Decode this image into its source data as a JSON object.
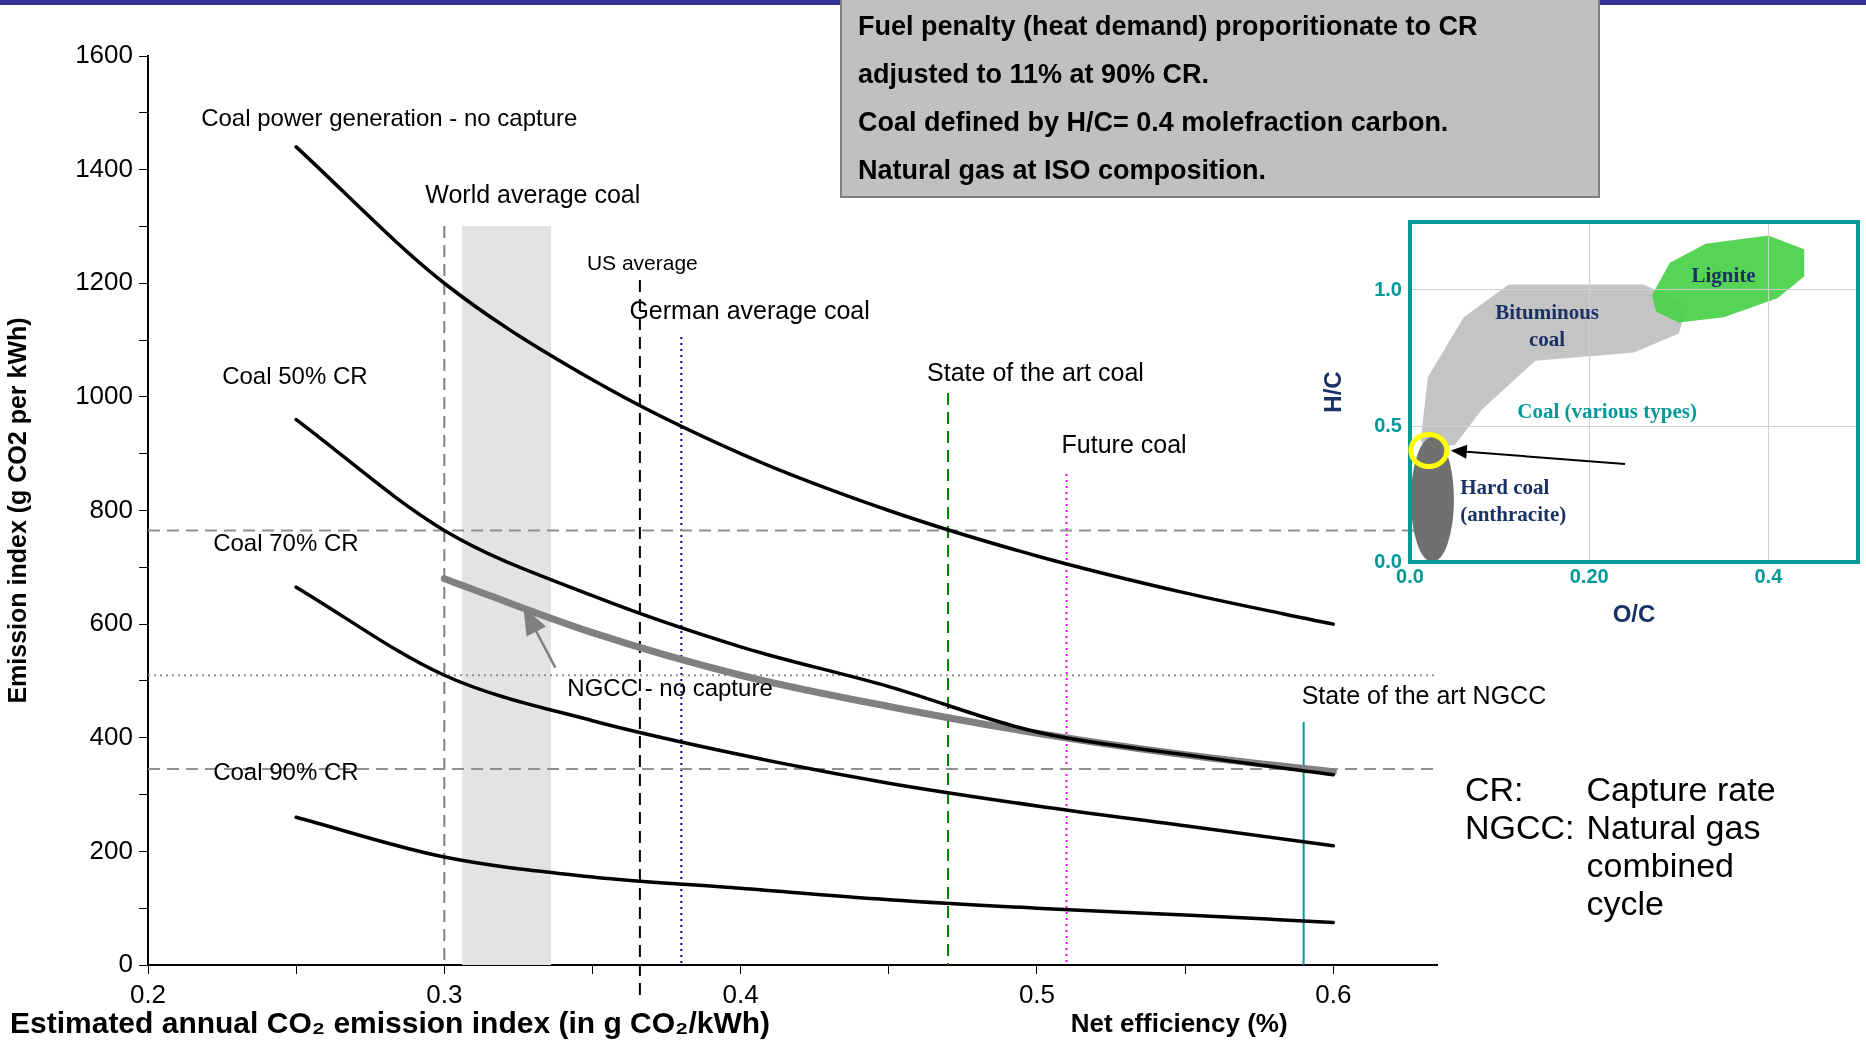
{
  "chart_data": [
    {
      "type": "line",
      "xlabel": "Net efficiency (%)",
      "ylabel": "Emission index (g CO2 per kWh)",
      "xlim": [
        0.2,
        0.635
      ],
      "ylim": [
        0,
        1600
      ],
      "xticks": [
        0.2,
        {
          "value": 0.25,
          "label": null
        },
        0.3,
        {
          "value": 0.35,
          "label": null
        },
        0.4,
        {
          "value": 0.45,
          "label": null
        },
        0.5,
        {
          "value": 0.55,
          "label": null
        },
        0.6
      ],
      "yticks": [
        0,
        {
          "value": 100,
          "label": null
        },
        200,
        {
          "value": 300,
          "label": null
        },
        400,
        {
          "value": 500,
          "label": null
        },
        600,
        {
          "value": 700,
          "label": null
        },
        800,
        {
          "value": 900,
          "label": null
        },
        1000,
        {
          "value": 1100,
          "label": null
        },
        1200,
        {
          "value": 1300,
          "label": null
        },
        1400,
        {
          "value": 1500,
          "label": null
        },
        1600
      ],
      "x": [
        0.25,
        0.3,
        0.35,
        0.4,
        0.45,
        0.5,
        0.55,
        0.6
      ],
      "marker": "none",
      "line_style": "solid",
      "series": [
        {
          "name": "Coal power generation - no capture",
          "color": "#000000",
          "values": [
            1440,
            1200,
            1030,
            900,
            800,
            720,
            655,
            600
          ]
        },
        {
          "name": "Coal 50% CR",
          "color": "#000000",
          "values": [
            960,
            765,
            650,
            560,
            490,
            410,
            370,
            335
          ]
        },
        {
          "name": "Coal 70% CR",
          "color": "#000000",
          "values": [
            665,
            510,
            430,
            370,
            320,
            280,
            245,
            210
          ]
        },
        {
          "name": "Coal 90% CR",
          "color": "#000000",
          "values": [
            260,
            190,
            155,
            135,
            115,
            100,
            88,
            75
          ]
        },
        {
          "name": "NGCC - no capture",
          "color": "#808080",
          "x": [
            0.3,
            0.35,
            0.4,
            0.45,
            0.5,
            0.55,
            0.6
          ],
          "values": [
            680,
            585,
            510,
            455,
            408,
            370,
            340
          ]
        }
      ],
      "ref_lines": [
        {
          "axis": "x",
          "value": 0.3,
          "label": "World average coal",
          "color": "#808080",
          "line_style": "dashed"
        },
        {
          "axis": "x",
          "value": 0.366,
          "label": "US average",
          "color": "#000000",
          "line_style": "dashed"
        },
        {
          "axis": "x",
          "value": 0.38,
          "label": "German average coal",
          "color": "#000080",
          "line_style": "dotted"
        },
        {
          "axis": "x",
          "value": 0.47,
          "label": "State of the art coal",
          "color": "#008000",
          "line_style": "dashed"
        },
        {
          "axis": "x",
          "value": 0.51,
          "label": "Future coal",
          "color": "#ff00ff",
          "line_style": "dotted"
        },
        {
          "axis": "x",
          "value": 0.59,
          "label": "State of the art NGCC",
          "color": "#009999",
          "line_style": "solid"
        },
        {
          "axis": "y",
          "value": 765,
          "color": "#909090",
          "line_style": "dashed"
        },
        {
          "axis": "y",
          "value": 510,
          "color": "#909090",
          "line_style": "dotted"
        },
        {
          "axis": "y",
          "value": 345,
          "color": "#909090",
          "line_style": "dashed"
        }
      ],
      "bands": [
        {
          "axis": "x",
          "from": 0.306,
          "to": 0.336,
          "color": "#e3e3e3"
        }
      ],
      "annotations": [
        "Fuel penalty (heat demand) proporitionate to CR",
        "adjusted to 11% at 90% CR.",
        "Coal defined by H/C= 0.4 molefraction carbon.",
        "Natural gas at ISO composition.",
        "CR: Capture rate",
        "NGCC: Natural gas combined cycle",
        "Estimated annual CO₂ emission index (in g CO₂/kWh)"
      ]
    },
    {
      "type": "scatter",
      "xlabel": "O/C",
      "ylabel": "H/C",
      "xlim": [
        0,
        0.5
      ],
      "ylim": [
        0,
        1.25
      ],
      "xticks": [
        {
          "value": 0,
          "label": "0.0"
        },
        {
          "value": 0.2,
          "label": "0.20"
        },
        {
          "value": 0.4,
          "label": "0.4"
        }
      ],
      "yticks": [
        {
          "value": 0,
          "label": "0.0"
        },
        {
          "value": 0.5,
          "label": "0.5"
        },
        {
          "value": 1,
          "label": "1.0"
        }
      ],
      "grid": true,
      "annotations": [
        "Lignite",
        "Bituminous coal",
        "Coal (various types)",
        "Hard coal (anthracite)"
      ]
    }
  ]
}
